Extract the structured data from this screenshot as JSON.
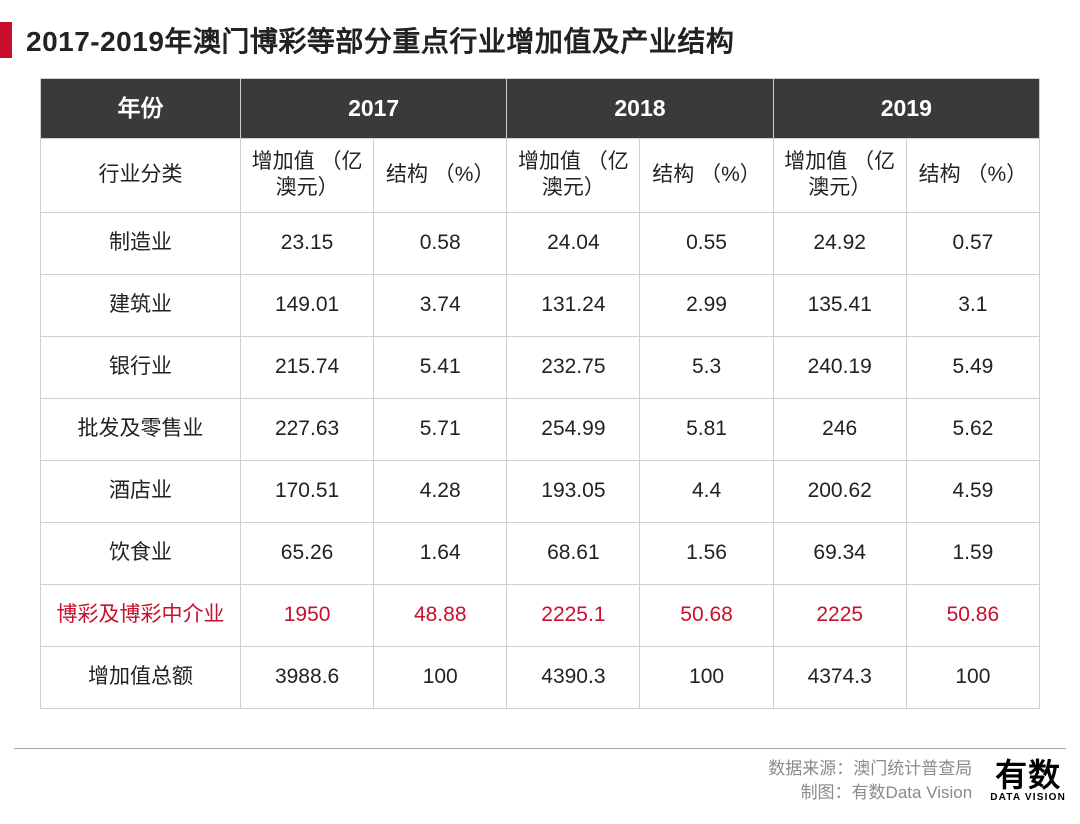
{
  "title": "2017-2019年澳门博彩等部分重点行业增加值及产业结构",
  "colors": {
    "accent": "#c8102e",
    "header_bg": "#3a3a3a",
    "header_text": "#ffffff",
    "border": "#cfcfcf",
    "text": "#222222",
    "footer_text": "#8a8a8a",
    "background": "#ffffff"
  },
  "table": {
    "year_header_label": "年份",
    "years": [
      "2017",
      "2018",
      "2019"
    ],
    "category_header_label": "行业分类",
    "value_sub_label": "增加值\n（亿澳元）",
    "pct_sub_label": "结构\n（%）",
    "rows": [
      {
        "name": "制造业",
        "v2017": "23.15",
        "p2017": "0.58",
        "v2018": "24.04",
        "p2018": "0.55",
        "v2019": "24.92",
        "p2019": "0.57",
        "highlight": false
      },
      {
        "name": "建筑业",
        "v2017": "149.01",
        "p2017": "3.74",
        "v2018": "131.24",
        "p2018": "2.99",
        "v2019": "135.41",
        "p2019": "3.1",
        "highlight": false
      },
      {
        "name": "银行业",
        "v2017": "215.74",
        "p2017": "5.41",
        "v2018": "232.75",
        "p2018": "5.3",
        "v2019": "240.19",
        "p2019": "5.49",
        "highlight": false
      },
      {
        "name": "批发及零售业",
        "v2017": "227.63",
        "p2017": "5.71",
        "v2018": "254.99",
        "p2018": "5.81",
        "v2019": "246",
        "p2019": "5.62",
        "highlight": false
      },
      {
        "name": "酒店业",
        "v2017": "170.51",
        "p2017": "4.28",
        "v2018": "193.05",
        "p2018": "4.4",
        "v2019": "200.62",
        "p2019": "4.59",
        "highlight": false
      },
      {
        "name": "饮食业",
        "v2017": "65.26",
        "p2017": "1.64",
        "v2018": "68.61",
        "p2018": "1.56",
        "v2019": "69.34",
        "p2019": "1.59",
        "highlight": false
      },
      {
        "name": "博彩及博彩中介业",
        "v2017": "1950",
        "p2017": "48.88",
        "v2018": "2225.1",
        "p2018": "50.68",
        "v2019": "2225",
        "p2019": "50.86",
        "highlight": true
      },
      {
        "name": "增加值总额",
        "v2017": "3988.6",
        "p2017": "100",
        "v2018": "4390.3",
        "p2018": "100",
        "v2019": "4374.3",
        "p2019": "100",
        "highlight": false
      }
    ]
  },
  "footer": {
    "source_label": "数据来源：澳门统计普查局",
    "chart_label": "制图：有数Data Vision",
    "logo_cn": "有数",
    "logo_en": "DATA VISION"
  }
}
